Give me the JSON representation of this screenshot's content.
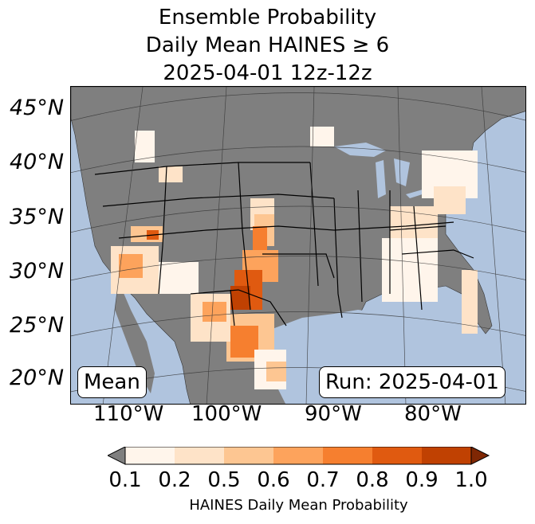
{
  "title": {
    "line1": "Ensemble Probability",
    "line2": "Daily Mean HAINES ≥ 6",
    "line3": "2025-04-01 12z-12z"
  },
  "map": {
    "lat_labels": [
      "45°N",
      "40°N",
      "35°N",
      "30°N",
      "25°N",
      "20°N"
    ],
    "lon_labels": [
      "110°W",
      "100°W",
      "90°W",
      "80°W"
    ],
    "left_box": "Mean",
    "right_box": "Run: 2025-04-01",
    "colors": {
      "ocean": "#b0c4de",
      "land": "#7f7f7f",
      "lake": "#b0c4de"
    }
  },
  "colorbar": {
    "ticks": [
      "0.1",
      "0.2",
      "0.5",
      "0.6",
      "0.7",
      "0.8",
      "0.9",
      "1.0"
    ],
    "label": "HAINES Daily Mean Probability",
    "under_color": "#7f7f7f",
    "over_color": "#7f2704",
    "colors": [
      "#fff5eb",
      "#fee3c8",
      "#fdc692",
      "#fda35c",
      "#f67f2f",
      "#e05a10",
      "#c04102"
    ]
  }
}
